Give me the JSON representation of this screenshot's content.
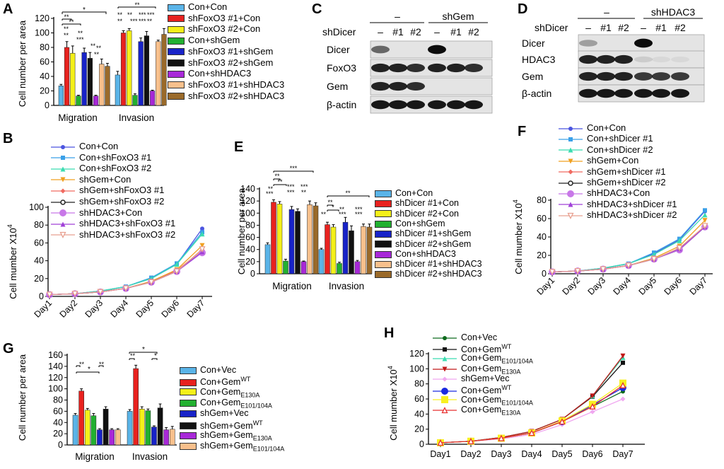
{
  "colors": {
    "con_con": "#5ab4e8",
    "kd1_con": "#e8221f",
    "kd2_con": "#f4f01a",
    "con_shgem": "#22b030",
    "kd1_shgem": "#1823c8",
    "kd2_shgem": "#111111",
    "con_shhdac3": "#a828d8",
    "kd1_shhdac3": "#f8c08c",
    "kd2_shhdac3": "#9a6a2a"
  },
  "panel_labels": [
    "A",
    "B",
    "C",
    "D",
    "E",
    "F",
    "G",
    "H"
  ],
  "panel_A": {
    "ylabel": "Cell number per area",
    "ticks": [
      "0",
      "20",
      "40",
      "60",
      "80",
      "100",
      "120"
    ],
    "groups": [
      "Migration",
      "Invasion"
    ],
    "legend": [
      "Con+Con",
      "shFoxO3 #1+Con",
      "shFoxO3 #2+Con",
      "Con+shGem",
      "shFoxO3 #1+shGem",
      "shFoxO3 #2+shGem",
      "Con+shHDAC3",
      "shFoxO3 #1+shHDAC3",
      "shFoxO3 #2+shHDAC3"
    ]
  },
  "panel_C": {
    "header_minus": "–",
    "header_sh": "shGem",
    "row_label": "shDicer",
    "lanes": [
      "–",
      "#1",
      "#2",
      "–",
      "#1",
      "#2"
    ],
    "blots": [
      "Dicer",
      "FoxO3",
      "Gem",
      "β-actin"
    ]
  },
  "panel_D": {
    "header_minus": "–",
    "header_sh": "shHDAC3",
    "row_label": "shDicer",
    "lanes": [
      "–",
      "#1",
      "#2",
      "–",
      "#1",
      "#2"
    ],
    "blots": [
      "Dicer",
      "HDAC3",
      "Gem",
      "β-actin"
    ]
  },
  "panel_B": {
    "ylabel": "Cell mumber X10",
    "ysup": "4",
    "ticks": [
      "0",
      "20",
      "40",
      "60",
      "80",
      "100"
    ],
    "legend": [
      "Con+Con",
      "Con+shFoxO3 #1",
      "Con+shFoxO3 #2",
      "shGem+Con",
      "shGem+shFoxO3 #1",
      "shGem+shFoxO3 #2",
      "shHDAC3+Con",
      "shHDAC3+shFoxO3 #1",
      "shHDAC3+shFoxO3 #2"
    ]
  },
  "panel_E": {
    "ylabel": "Cell number per area",
    "ticks": [
      "0",
      "20",
      "40",
      "60",
      "80",
      "100",
      "120",
      "140"
    ],
    "groups": [
      "Migration",
      "Invasion"
    ],
    "legend": [
      "Con+Con",
      "shDicer #1+Con",
      "shDicer #2+Con",
      "Con+shGem",
      "shDicer #1+shGem",
      "shDicer #2+shGem",
      "Con+shHDAC3",
      "shDicer #1+shHDAC3",
      "shDicer #2+shHDAC3"
    ]
  },
  "panel_F": {
    "ylabel": "Cell mumber X10",
    "ysup": "4",
    "ticks": [
      "0",
      "20",
      "40",
      "60",
      "80"
    ],
    "legend": [
      "Con+Con",
      "Con+shDicer #1",
      "Con+shDicer #2",
      "shGem+Con",
      "shGem+shDicer #1",
      "shGem+shDicer #2",
      "shHDAC3+Con",
      "shHDAC3+shDicer #1",
      "shHDAC3+shDicer #2"
    ]
  },
  "panel_G": {
    "ylabel": "Cell number per area",
    "ticks": [
      "0",
      "20",
      "40",
      "60",
      "80",
      "100",
      "120",
      "140",
      "160"
    ],
    "groups": [
      "Migration",
      "Invasion"
    ],
    "legend": [
      {
        "main": "Con+Vec",
        "sub": "",
        "sup": ""
      },
      {
        "main": "Con+Gem",
        "sub": "",
        "sup": "WT"
      },
      {
        "main": "Con+Gem",
        "sub": "E130A",
        "sup": ""
      },
      {
        "main": "Con+Gem",
        "sub": "E101/104A",
        "sup": ""
      },
      {
        "main": "shGem+Vec",
        "sub": "",
        "sup": ""
      },
      {
        "main": "shGem+Gem",
        "sub": "",
        "sup": "WT"
      },
      {
        "main": "shGem+Gem",
        "sub": "E130A",
        "sup": ""
      },
      {
        "main": "shGem+Gem",
        "sub": "E101/104A",
        "sup": ""
      }
    ]
  },
  "panel_H": {
    "ylabel": "Cell mumber X10",
    "ysup": "4",
    "ticks": [
      "0",
      "20",
      "40",
      "60",
      "80",
      "100",
      "120"
    ],
    "legend": [
      {
        "main": "Con+Vec",
        "sub": "",
        "sup": ""
      },
      {
        "main": "Con+Gem",
        "sub": "",
        "sup": "WT"
      },
      {
        "main": "Con+Gem",
        "sub": "E101/104A",
        "sup": ""
      },
      {
        "main": "Con+Gem",
        "sub": "E130A",
        "sup": ""
      },
      {
        "main": "shGem+Vec",
        "sub": "",
        "sup": ""
      },
      {
        "main": "Con+Gem",
        "sub": "",
        "sup": "WT"
      },
      {
        "main": "Con+Gem",
        "sub": "E101/104A",
        "sup": ""
      },
      {
        "main": "Con+Gem",
        "sub": "E130A",
        "sup": ""
      }
    ]
  },
  "days": [
    "Day1",
    "Day2",
    "Day3",
    "Day4",
    "Day5",
    "Day6",
    "Day7"
  ],
  "chart_data": [
    {
      "panel": "A",
      "type": "bar",
      "ylabel": "Cell number per area",
      "ylim": [
        0,
        120
      ],
      "categories": [
        "Migration",
        "Invasion"
      ],
      "series": [
        {
          "name": "Con+Con",
          "values": [
            27,
            42
          ],
          "err": [
            2,
            5
          ]
        },
        {
          "name": "shFoxO3 #1+Con",
          "values": [
            80,
            100
          ],
          "err": [
            8,
            3
          ]
        },
        {
          "name": "shFoxO3 #2+Con",
          "values": [
            72,
            103
          ],
          "err": [
            10,
            3
          ]
        },
        {
          "name": "Con+shGem",
          "values": [
            13,
            14
          ],
          "err": [
            1,
            2
          ]
        },
        {
          "name": "shFoxO3 #1+shGem",
          "values": [
            73,
            88
          ],
          "err": [
            6,
            5
          ]
        },
        {
          "name": "shFoxO3 #2+shGem",
          "values": [
            65,
            96
          ],
          "err": [
            8,
            6
          ]
        },
        {
          "name": "Con+shHDAC3",
          "values": [
            13,
            20
          ],
          "err": [
            1,
            1
          ]
        },
        {
          "name": "shFoxO3 #1+shHDAC3",
          "values": [
            57,
            88
          ],
          "err": [
            7,
            2
          ]
        },
        {
          "name": "shFoxO3 #2+shHDAC3",
          "values": [
            54,
            98
          ],
          "err": [
            4,
            8
          ]
        }
      ]
    },
    {
      "panel": "B",
      "type": "line",
      "ylabel": "Cell mumber X10^4",
      "ylim": [
        0,
        100
      ],
      "x": [
        "Day1",
        "Day2",
        "Day3",
        "Day4",
        "Day5",
        "Day6",
        "Day7"
      ],
      "series": [
        {
          "name": "Con+Con",
          "values": [
            2,
            3,
            6,
            11,
            20,
            36,
            76
          ]
        },
        {
          "name": "Con+shFoxO3 #1",
          "values": [
            2,
            3,
            6,
            11,
            21,
            37,
            72
          ]
        },
        {
          "name": "Con+shFoxO3 #2",
          "values": [
            2,
            3,
            6,
            11,
            20,
            36,
            70
          ]
        },
        {
          "name": "shGem+Con",
          "values": [
            2,
            3,
            5,
            9,
            17,
            30,
            57
          ]
        },
        {
          "name": "shGem+shFoxO3 #1",
          "values": [
            2,
            3,
            5,
            9,
            16,
            29,
            52
          ]
        },
        {
          "name": "shGem+shFoxO3 #2",
          "values": [
            2,
            3,
            5,
            9,
            16,
            28,
            50
          ]
        },
        {
          "name": "shHDAC3+Con",
          "values": [
            2,
            3,
            5,
            9,
            16,
            28,
            49
          ]
        },
        {
          "name": "shHDAC3+shFoxO3 #1",
          "values": [
            2,
            3,
            5,
            9,
            16,
            28,
            50
          ]
        },
        {
          "name": "shHDAC3+shFoxO3 #2",
          "values": [
            2,
            3,
            5,
            9,
            16,
            28,
            53
          ]
        }
      ]
    },
    {
      "panel": "E",
      "type": "bar",
      "ylabel": "Cell number per area",
      "ylim": [
        0,
        140
      ],
      "categories": [
        "Migration",
        "Invasion"
      ],
      "series": [
        {
          "name": "Con+Con",
          "values": [
            48,
            40
          ],
          "err": [
            3,
            2
          ]
        },
        {
          "name": "shDicer #1+Con",
          "values": [
            118,
            81
          ],
          "err": [
            4,
            4
          ]
        },
        {
          "name": "shDicer #2+Con",
          "values": [
            115,
            77
          ],
          "err": [
            4,
            4
          ]
        },
        {
          "name": "Con+shGem",
          "values": [
            21,
            17
          ],
          "err": [
            3,
            2
          ]
        },
        {
          "name": "shDicer #1+shGem",
          "values": [
            106,
            85
          ],
          "err": [
            5,
            8
          ]
        },
        {
          "name": "shDicer #2+shGem",
          "values": [
            103,
            71
          ],
          "err": [
            4,
            8
          ]
        },
        {
          "name": "Con+shHDAC3",
          "values": [
            20,
            20
          ],
          "err": [
            1,
            2
          ]
        },
        {
          "name": "shDicer #1+shHDAC3",
          "values": [
            114,
            78
          ],
          "err": [
            6,
            4
          ]
        },
        {
          "name": "shDicer #2+shHDAC3",
          "values": [
            112,
            77
          ],
          "err": [
            5,
            5
          ]
        }
      ]
    },
    {
      "panel": "F",
      "type": "line",
      "ylabel": "Cell mumber X10^4",
      "ylim": [
        0,
        80
      ],
      "x": [
        "Day1",
        "Day2",
        "Day3",
        "Day4",
        "Day5",
        "Day6",
        "Day7"
      ],
      "series": [
        {
          "name": "Con+Con",
          "values": [
            2,
            3,
            6,
            11,
            22,
            37,
            68
          ]
        },
        {
          "name": "Con+shDicer #1",
          "values": [
            2,
            3,
            6,
            11,
            23,
            38,
            69
          ]
        },
        {
          "name": "Con+shDicer #2",
          "values": [
            2,
            3,
            6,
            11,
            21,
            36,
            64
          ]
        },
        {
          "name": "shGem+Con",
          "values": [
            2,
            3,
            5,
            9,
            17,
            30,
            58
          ]
        },
        {
          "name": "shGem+shDicer #1",
          "values": [
            2,
            3,
            5,
            9,
            16,
            27,
            52
          ]
        },
        {
          "name": "shGem+shDicer #2",
          "values": [
            2,
            3,
            5,
            9,
            16,
            26,
            51
          ]
        },
        {
          "name": "shHDAC3+Con",
          "values": [
            2,
            3,
            5,
            9,
            16,
            26,
            51
          ]
        },
        {
          "name": "shHDAC3+shDicer #1",
          "values": [
            2,
            3,
            5,
            9,
            16,
            27,
            51
          ]
        },
        {
          "name": "shHDAC3+shDicer #2",
          "values": [
            2,
            3,
            5,
            9,
            16,
            28,
            52
          ]
        }
      ]
    },
    {
      "panel": "G",
      "type": "bar",
      "ylabel": "Cell number per area",
      "ylim": [
        0,
        160
      ],
      "categories": [
        "Migration",
        "Invasion"
      ],
      "series": [
        {
          "name": "Con+Vec",
          "values": [
            53,
            60
          ],
          "err": [
            3,
            3
          ]
        },
        {
          "name": "Con+Gem WT",
          "values": [
            96,
            136
          ],
          "err": [
            4,
            6
          ]
        },
        {
          "name": "Con+Gem E130A",
          "values": [
            62,
            64
          ],
          "err": [
            3,
            4
          ]
        },
        {
          "name": "Con+Gem E101/104A",
          "values": [
            52,
            61
          ],
          "err": [
            4,
            3
          ]
        },
        {
          "name": "shGem+Vec",
          "values": [
            27,
            32
          ],
          "err": [
            2,
            2
          ]
        },
        {
          "name": "shGem+Gem WT",
          "values": [
            64,
            66
          ],
          "err": [
            4,
            7
          ]
        },
        {
          "name": "shGem+Gem E130A",
          "values": [
            27,
            27
          ],
          "err": [
            2,
            4
          ]
        },
        {
          "name": "shGem+Gem E101/104A",
          "values": [
            27,
            28
          ],
          "err": [
            2,
            5
          ]
        }
      ]
    },
    {
      "panel": "H",
      "type": "line",
      "ylabel": "Cell mumber X10^4",
      "ylim": [
        0,
        120
      ],
      "x": [
        "Day1",
        "Day2",
        "Day3",
        "Day4",
        "Day5",
        "Day6",
        "Day7"
      ],
      "series": [
        {
          "name": "Con+Vec",
          "values": [
            2,
            4,
            8,
            15,
            30,
            50,
            70
          ]
        },
        {
          "name": "Con+Gem WT",
          "values": [
            2,
            4,
            9,
            17,
            33,
            63,
            108
          ]
        },
        {
          "name": "Con+Gem E101/104A",
          "values": [
            2,
            4,
            9,
            17,
            33,
            64,
            115
          ]
        },
        {
          "name": "Con+Gem E130A",
          "values": [
            2,
            4,
            9,
            17,
            33,
            64,
            117
          ]
        },
        {
          "name": "shGem+Vec",
          "values": [
            2,
            4,
            7,
            13,
            26,
            43,
            60
          ]
        },
        {
          "name": "Con+Gem WT",
          "values": [
            2,
            4,
            8,
            15,
            30,
            52,
            75
          ]
        },
        {
          "name": "Con+Gem E101/104A",
          "values": [
            2,
            4,
            8,
            15,
            31,
            53,
            81
          ]
        },
        {
          "name": "Con+Gem E130A",
          "values": [
            2,
            4,
            8,
            15,
            30,
            50,
            78
          ]
        }
      ]
    }
  ]
}
